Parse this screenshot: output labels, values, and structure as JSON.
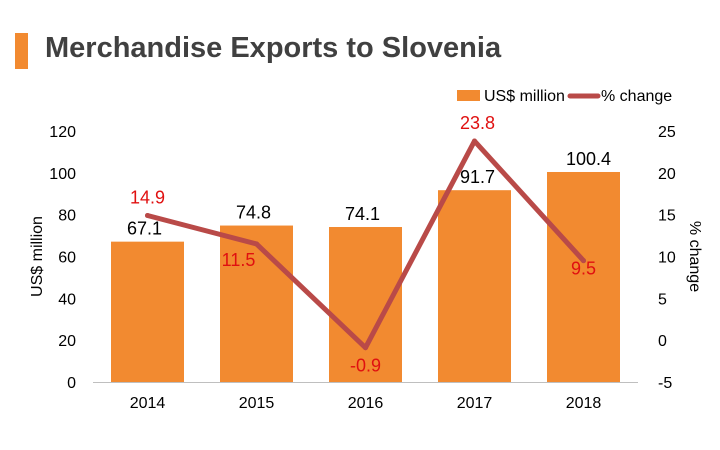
{
  "chart_data": {
    "type": "bar",
    "title": "Merchandise Exports to Slovenia",
    "categories": [
      "2014",
      "2015",
      "2016",
      "2017",
      "2018"
    ],
    "series": [
      {
        "name": "US$ million",
        "type": "bar",
        "axis": "left",
        "color": "#F28A30",
        "values": [
          67.1,
          74.8,
          74.1,
          91.7,
          100.4
        ],
        "labels": [
          "67.1",
          "74.8",
          "74.1",
          "91.7",
          "100.4"
        ]
      },
      {
        "name": "% change",
        "type": "line",
        "axis": "right",
        "color": "#B94A48",
        "values": [
          14.9,
          11.5,
          -0.9,
          23.8,
          9.5
        ],
        "labels": [
          "14.9",
          "11.5",
          "-0.9",
          "23.8",
          "9.5"
        ]
      }
    ],
    "ylabel": "US$ million",
    "ylabel_right": "% change",
    "ylim": [
      0,
      120
    ],
    "yticks": [
      "0",
      "20",
      "40",
      "60",
      "80",
      "100",
      "120"
    ],
    "ylim_right": [
      -5,
      25
    ],
    "yticks_right": [
      "-5",
      "0",
      "5",
      "10",
      "15",
      "20",
      "25"
    ],
    "legend_position": "top-right",
    "grid": false,
    "bar_label_color": "#000000",
    "line_label_color": "#E01010"
  }
}
